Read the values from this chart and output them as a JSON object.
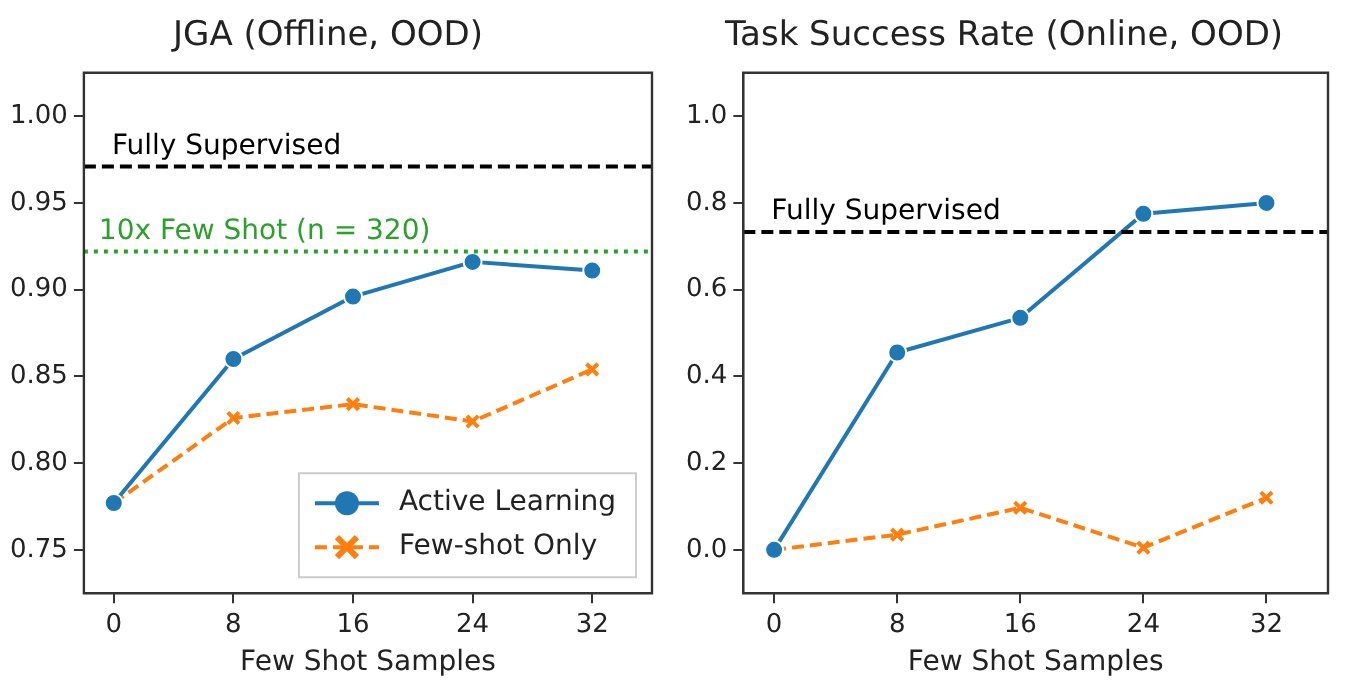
{
  "chart_data": [
    {
      "type": "line",
      "title": "JGA (Offline, OOD)",
      "xlabel": "Few Shot Samples",
      "x": [
        0,
        8,
        16,
        24,
        32
      ],
      "xlim": [
        -2,
        36
      ],
      "xticks": [
        0,
        8,
        16,
        24,
        32
      ],
      "ylim": [
        0.725,
        1.025
      ],
      "yticks": [
        {
          "value": 0.75,
          "label": "0.75"
        },
        {
          "value": 0.8,
          "label": "0.80"
        },
        {
          "value": 0.85,
          "label": "0.85"
        },
        {
          "value": 0.9,
          "label": "0.90"
        },
        {
          "value": 0.95,
          "label": "0.95"
        },
        {
          "value": 1.0,
          "label": "1.00"
        }
      ],
      "grid": false,
      "legend": "bottom right",
      "series": [
        {
          "name": "Active Learning",
          "color": "#1f77b4",
          "marker": "circle",
          "line_style": "solid",
          "values": [
            0.777,
            0.86,
            0.896,
            0.916,
            0.911
          ]
        },
        {
          "name": "Few-shot Only",
          "color": "#ff7f0e",
          "marker": "cross",
          "line_style": "dashed",
          "values": [
            0.777,
            0.826,
            0.834,
            0.824,
            0.854
          ]
        }
      ],
      "ref_lines": [
        {
          "axis": "y",
          "value": 0.971,
          "label": "Fully Supervised",
          "color": "#000000",
          "line_style": "dashed"
        },
        {
          "axis": "y",
          "value": 0.922,
          "color": "#2ca02c",
          "line_style": "dotted"
        }
      ],
      "annotations": [
        {
          "text": "10x Few Shot (n = 320)",
          "x": -1,
          "y": 0.922
        }
      ]
    },
    {
      "type": "line",
      "title": "Task Success Rate (Online, OOD)",
      "xlabel": "Few Shot Samples",
      "x": [
        0,
        8,
        16,
        24,
        32
      ],
      "xlim": [
        -2,
        36
      ],
      "xticks": [
        0,
        8,
        16,
        24,
        32
      ],
      "ylim": [
        -0.1,
        1.1
      ],
      "yticks": [
        {
          "value": 0,
          "label": "0.0"
        },
        {
          "value": 0.2,
          "label": "0.2"
        },
        {
          "value": 0.4,
          "label": "0.4"
        },
        {
          "value": 0.6,
          "label": "0.6"
        },
        {
          "value": 0.8,
          "label": "0.8"
        },
        {
          "value": 1.0,
          "label": "1.0"
        }
      ],
      "grid": false,
      "legend": false,
      "series": [
        {
          "color": "#1f77b4",
          "marker": "circle",
          "line_style": "solid",
          "values": [
            0.0,
            0.455,
            0.535,
            0.775,
            0.8
          ]
        },
        {
          "color": "#ff7f0e",
          "marker": "cross",
          "line_style": "dashed",
          "values": [
            0.0,
            0.035,
            0.097,
            0.005,
            0.12
          ]
        }
      ],
      "ref_lines": [
        {
          "axis": "y",
          "value": 0.733,
          "label": "Fully Supervised",
          "color": "#000000",
          "line_style": "dashed"
        }
      ]
    }
  ]
}
